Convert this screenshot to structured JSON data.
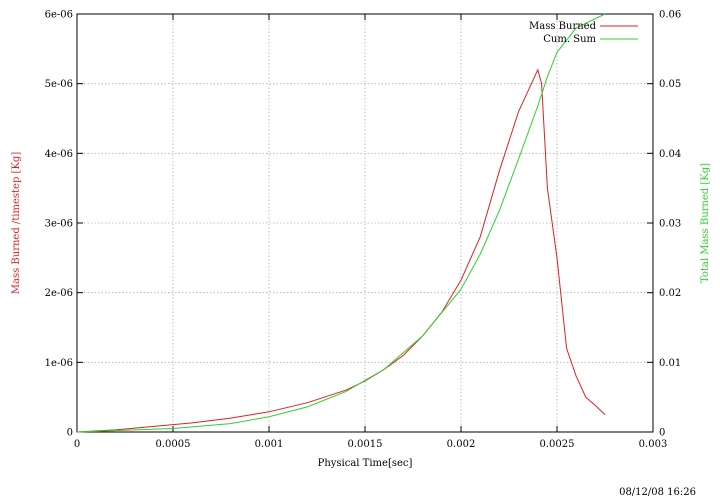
{
  "chart_data": {
    "type": "line",
    "xlabel": "Physical Time[sec]",
    "ylabel": "Mass Burned /timestep [Kg]",
    "y2label": "Total Mass Burned [Kg]",
    "xlim": [
      0,
      0.003
    ],
    "ylim": [
      0,
      6e-06
    ],
    "y2lim": [
      0,
      0.06
    ],
    "xticks": [
      "0",
      "0.0005",
      "0.001",
      "0.0015",
      "0.002",
      "0.0025",
      "0.003"
    ],
    "yticks": [
      "0",
      "1e-06",
      "2e-06",
      "3e-06",
      "4e-06",
      "5e-06",
      "6e-06"
    ],
    "y2ticks": [
      "0",
      "0.01",
      "0.02",
      "0.03",
      "0.04",
      "0.05",
      "0.06"
    ],
    "grid": true,
    "legend_position": "top-right",
    "series": [
      {
        "name": "Mass Burned",
        "axis": "left",
        "color": "#e02020",
        "x": [
          0,
          0.0002,
          0.0004,
          0.0006,
          0.0008,
          0.001,
          0.0012,
          0.0014,
          0.0015,
          0.0016,
          0.0017,
          0.0018,
          0.0019,
          0.002,
          0.0021,
          0.0022,
          0.0023,
          0.0024,
          0.00242,
          0.00245,
          0.0025,
          0.00255,
          0.0026,
          0.00265,
          0.0027,
          0.00275
        ],
        "y": [
          0,
          3e-08,
          8e-08,
          1.3e-07,
          2e-07,
          2.9e-07,
          4.2e-07,
          6e-07,
          7.3e-07,
          9e-07,
          1.1e-06,
          1.38e-06,
          1.72e-06,
          2.18e-06,
          2.8e-06,
          3.75e-06,
          4.6e-06,
          5.2e-06,
          5e-06,
          3.5e-06,
          2.5e-06,
          1.2e-06,
          8e-07,
          5e-07,
          3.8e-07,
          2.5e-07
        ]
      },
      {
        "name": "Cum. Sum",
        "axis": "right",
        "color": "#30d030",
        "x": [
          0,
          0.0005,
          0.0008,
          0.001,
          0.0012,
          0.0014,
          0.0016,
          0.0018,
          0.002,
          0.0021,
          0.0022,
          0.0023,
          0.0024,
          0.00245,
          0.0025,
          0.0026,
          0.00275
        ],
        "y": [
          0,
          0.0005,
          0.0012,
          0.0022,
          0.0036,
          0.0058,
          0.009,
          0.0138,
          0.0205,
          0.0255,
          0.0318,
          0.0392,
          0.0468,
          0.051,
          0.0545,
          0.058,
          0.06
        ]
      }
    ]
  },
  "footer": {
    "timestamp": "08/12/08 16:26"
  },
  "colors": {
    "mass_burned": "#e02020",
    "cum_sum": "#30d030",
    "grid": "#b0b0b0"
  }
}
